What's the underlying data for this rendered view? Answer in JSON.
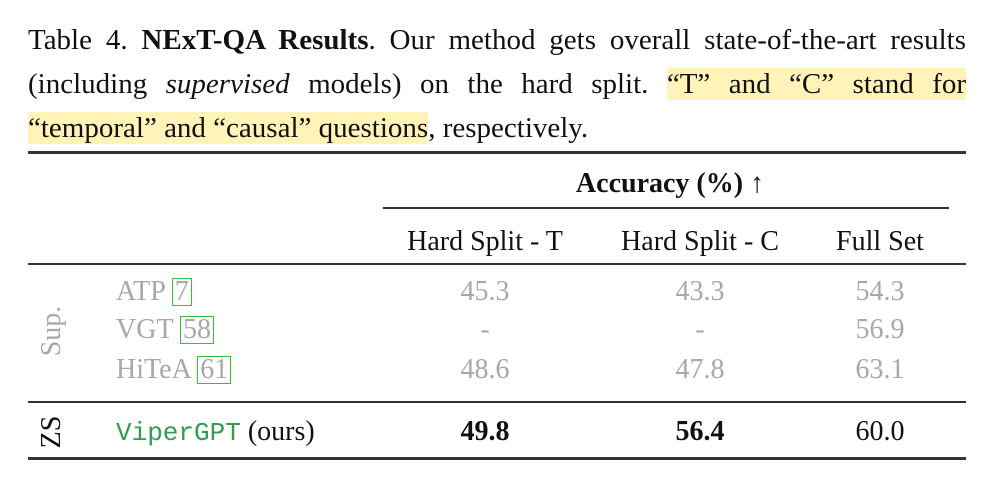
{
  "caption": {
    "label": "Table 4.",
    "title": "NExT-QA Results",
    "text1": ". Our method gets overall state-of-the-art results (including ",
    "emphasis": "supervised",
    "text2": " models) on the hard split. ",
    "highlight": "“T” and “C” stand for “temporal” and “causal” questions",
    "text3": ", respectively."
  },
  "table": {
    "group_header": "Accuracy (%) ↑",
    "columns": [
      "Hard Split - T",
      "Hard Split - C",
      "Full Set"
    ],
    "groups": [
      {
        "label": "Sup.",
        "rows": [
          {
            "method": "ATP",
            "cite": "7",
            "values": [
              "45.3",
              "43.3",
              "54.3"
            ]
          },
          {
            "method": "VGT",
            "cite": "58",
            "values": [
              "-",
              "-",
              "56.9"
            ]
          },
          {
            "method": "HiTeA",
            "cite": "61",
            "values": [
              "48.6",
              "47.8",
              "63.1"
            ]
          }
        ]
      },
      {
        "label": "ZS",
        "rows": [
          {
            "method": "ViperGPT",
            "suffix": "(ours)",
            "values": [
              "49.8",
              "56.4",
              "60.0"
            ]
          }
        ]
      }
    ]
  }
}
